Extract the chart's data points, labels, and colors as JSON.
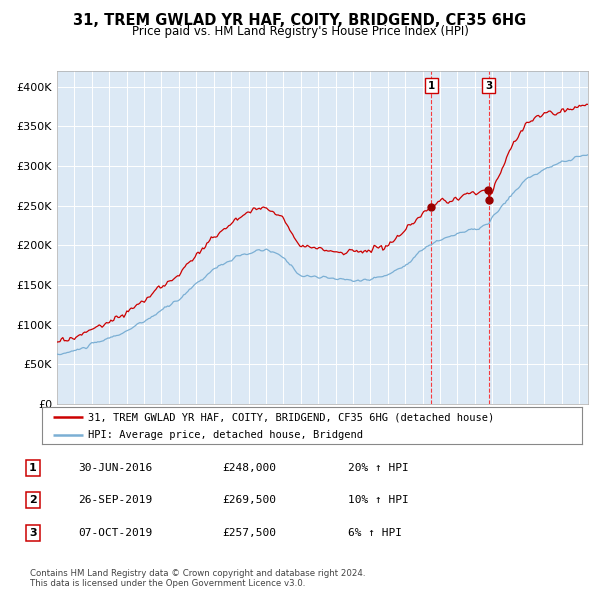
{
  "title": "31, TREM GWLAD YR HAF, COITY, BRIDGEND, CF35 6HG",
  "subtitle": "Price paid vs. HM Land Registry's House Price Index (HPI)",
  "background_color": "#dce9f5",
  "plot_bg_color": "#dce9f5",
  "ylim": [
    0,
    420000
  ],
  "yticks": [
    0,
    50000,
    100000,
    150000,
    200000,
    250000,
    300000,
    350000,
    400000
  ],
  "ytick_labels": [
    "£0",
    "£50K",
    "£100K",
    "£150K",
    "£200K",
    "£250K",
    "£300K",
    "£350K",
    "£400K"
  ],
  "xlim_start": 1995.0,
  "xlim_end": 2025.5,
  "sale1_date": 2016.5,
  "sale1_price": 248000,
  "sale2_date": 2019.73,
  "sale2_price": 269500,
  "sale3_date": 2019.79,
  "sale3_price": 257500,
  "vline1_x": 2016.5,
  "vline2_x": 2019.79,
  "red_line_color": "#cc0000",
  "blue_line_color": "#7bafd4",
  "legend_entry1": "31, TREM GWLAD YR HAF, COITY, BRIDGEND, CF35 6HG (detached house)",
  "legend_entry2": "HPI: Average price, detached house, Bridgend",
  "table_rows": [
    {
      "num": "1",
      "date": "30-JUN-2016",
      "price": "£248,000",
      "hpi": "20% ↑ HPI"
    },
    {
      "num": "2",
      "date": "26-SEP-2019",
      "price": "£269,500",
      "hpi": "10% ↑ HPI"
    },
    {
      "num": "3",
      "date": "07-OCT-2019",
      "price": "£257,500",
      "hpi": "6% ↑ HPI"
    }
  ],
  "footer": "Contains HM Land Registry data © Crown copyright and database right 2024.\nThis data is licensed under the Open Government Licence v3.0."
}
